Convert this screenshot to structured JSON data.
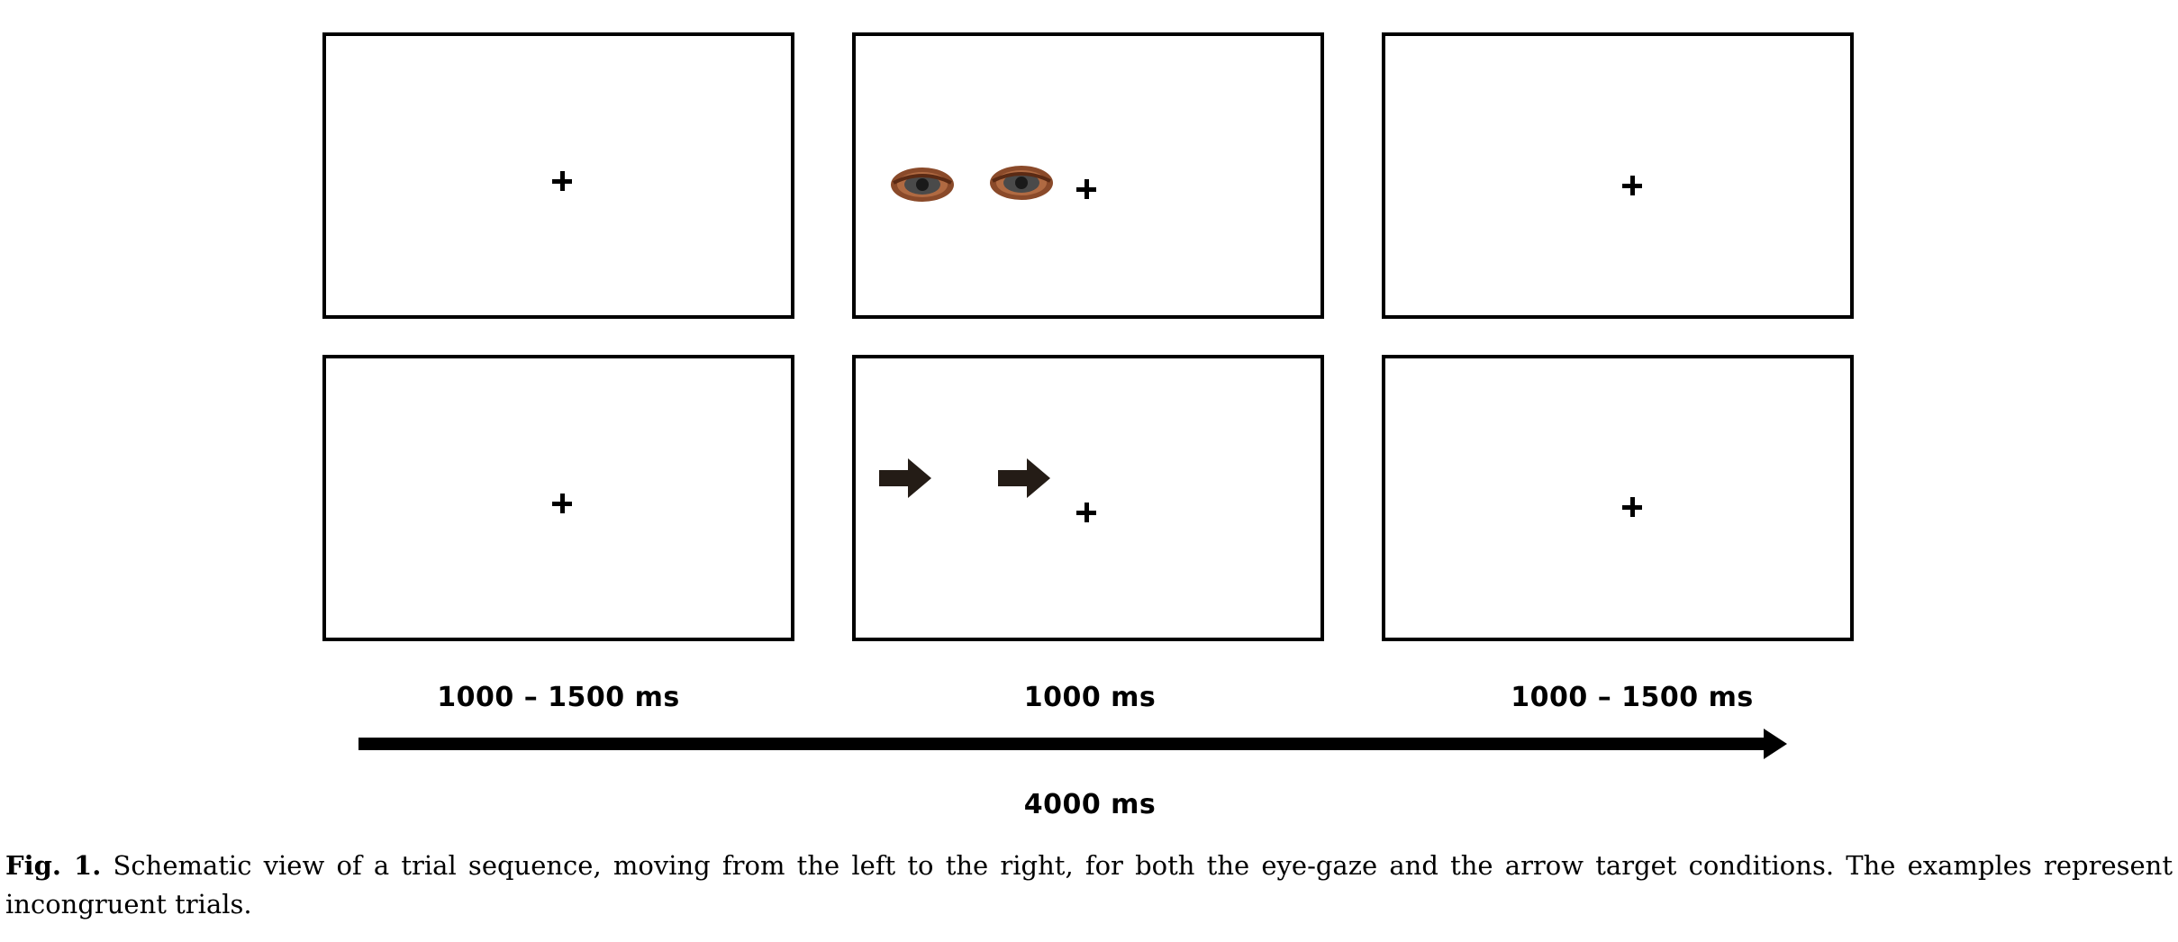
{
  "panels": {
    "eye_row": {
      "cue": "eye-gaze-icon"
    },
    "arrow_row": {
      "cue": "arrow-right-icon"
    },
    "fixation_symbol": "plus-icon"
  },
  "timeline": {
    "phase_1": "1000 – 1500 ms",
    "phase_2": "1000 ms",
    "phase_3": "1000 – 1500 ms",
    "total": "4000 ms"
  },
  "caption": {
    "label": "Fig. 1.",
    "text": "Schematic view of a trial sequence, moving from the left to the right, for both the eye-gaze and the arrow target conditions. The examples represent incongruent trials."
  },
  "colors": {
    "iris": "#8a4a2a",
    "pupil": "#1a1a1a",
    "arrow": "#241c16",
    "ink": "#000000"
  }
}
